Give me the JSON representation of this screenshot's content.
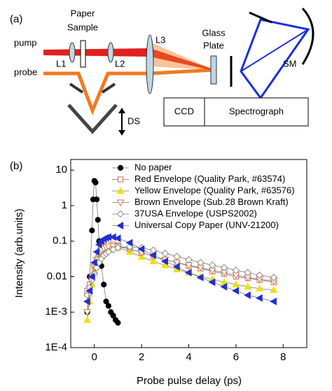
{
  "diagram": {
    "panel_label": "(a)",
    "pump": "pump",
    "probe": "probe",
    "paper_sample": [
      "Paper",
      "Sample"
    ],
    "l1": "L1",
    "l2": "L2",
    "l3": "L3",
    "glass_plate": [
      "Glass",
      "Plate"
    ],
    "sm": "SM",
    "ds": "DS",
    "ccd": "CCD",
    "spectrograph": "Spectrograph"
  },
  "chart_data": {
    "type": "line",
    "panel_label": "(b)",
    "x_label": "Probe pulse delay (ps)",
    "y_label": "Intensity (arb.units)",
    "xlim": [
      -1,
      9
    ],
    "xticks": [
      0,
      2,
      4,
      6,
      8
    ],
    "ylim": [
      0.0001,
      20
    ],
    "y_scale": "log",
    "yticks": [
      10,
      1,
      0.1,
      0.01,
      {
        "value": 0.001,
        "label": "1E-3"
      },
      {
        "value": 0.0001,
        "label": "1E-4"
      }
    ],
    "legend": "upper center",
    "series": [
      {
        "name": "No paper",
        "color": "#000000",
        "marker": "circle",
        "filled": true,
        "x": [
          -0.3,
          -0.2,
          -0.1,
          -0.05,
          0,
          0.05,
          0.1,
          0.15,
          0.2,
          0.3,
          0.4,
          0.5,
          0.6,
          0.7,
          0.8,
          0.9,
          1.0
        ],
        "values": [
          0.001,
          0.01,
          0.2,
          1.5,
          5,
          4.5,
          1.5,
          0.4,
          0.1,
          0.02,
          0.006,
          0.002,
          0.0015,
          0.001,
          0.0008,
          0.0006,
          0.0005
        ]
      },
      {
        "name": "Red Envelope (Quality Park, #63574)",
        "color": "#e06060",
        "marker": "square",
        "filled": false,
        "x": [
          -0.3,
          -0.2,
          -0.1,
          0,
          0.1,
          0.2,
          0.3,
          0.4,
          0.5,
          0.6,
          0.8,
          1,
          1.5,
          2,
          2.5,
          3,
          3.5,
          4,
          4.5,
          5,
          5.5,
          6,
          6.5,
          7,
          7.6
        ],
        "values": [
          0.004,
          0.006,
          0.01,
          0.02,
          0.03,
          0.045,
          0.06,
          0.07,
          0.075,
          0.08,
          0.08,
          0.075,
          0.06,
          0.048,
          0.038,
          0.03,
          0.025,
          0.02,
          0.017,
          0.014,
          0.012,
          0.01,
          0.009,
          0.008,
          0.007
        ]
      },
      {
        "name": "Yellow Envelope (Quality Park, #63576)",
        "color": "#f0e000",
        "marker": "triangle-up",
        "filled": true,
        "x": [
          -0.3,
          -0.2,
          -0.1,
          0,
          0.1,
          0.2,
          0.3,
          0.4,
          0.5,
          0.6,
          0.8,
          1,
          1.5,
          2,
          2.5,
          3,
          3.5,
          4,
          4.5,
          5,
          5.5,
          6,
          6.5,
          7,
          7.6
        ],
        "values": [
          0.0006,
          0.002,
          0.006,
          0.015,
          0.025,
          0.04,
          0.05,
          0.06,
          0.065,
          0.068,
          0.07,
          0.066,
          0.05,
          0.036,
          0.027,
          0.021,
          0.016,
          0.013,
          0.01,
          0.0085,
          0.007,
          0.006,
          0.0052,
          0.0046,
          0.0042
        ]
      },
      {
        "name": "Brown Envelope (Sub.28 Brown Kraft)",
        "color": "#d08040",
        "marker": "triangle-down",
        "filled": false,
        "x": [
          -0.3,
          -0.2,
          -0.1,
          0,
          0.1,
          0.2,
          0.3,
          0.4,
          0.5,
          0.6,
          0.8,
          1,
          1.5,
          2,
          2.5,
          3,
          3.5,
          4,
          4.5,
          5,
          5.5,
          6,
          6.5,
          7,
          7.6
        ],
        "values": [
          0.001,
          0.003,
          0.008,
          0.018,
          0.03,
          0.045,
          0.055,
          0.062,
          0.066,
          0.07,
          0.072,
          0.07,
          0.06,
          0.048,
          0.038,
          0.03,
          0.025,
          0.021,
          0.018,
          0.015,
          0.013,
          0.011,
          0.0095,
          0.0085,
          0.0075
        ]
      },
      {
        "name": "37USA Envelope (USPS2002)",
        "color": "#888888",
        "marker": "diamond",
        "filled": false,
        "x": [
          -0.3,
          -0.2,
          -0.1,
          0,
          0.1,
          0.2,
          0.3,
          0.4,
          0.5,
          0.6,
          0.8,
          1,
          1.5,
          2,
          2.5,
          3,
          3.5,
          4,
          4.5,
          5,
          5.5,
          6,
          6.5,
          7,
          7.6
        ],
        "values": [
          0.003,
          0.005,
          0.008,
          0.012,
          0.018,
          0.025,
          0.032,
          0.04,
          0.045,
          0.05,
          0.058,
          0.065,
          0.07,
          0.065,
          0.055,
          0.045,
          0.037,
          0.03,
          0.025,
          0.021,
          0.018,
          0.015,
          0.013,
          0.011,
          0.0095
        ]
      },
      {
        "name": "Universal Copy Paper (UNV-21200)",
        "color": "#2030d0",
        "marker": "triangle-left",
        "filled": true,
        "x": [
          -0.3,
          -0.2,
          -0.1,
          0,
          0.1,
          0.2,
          0.3,
          0.4,
          0.5,
          0.6,
          0.8,
          1,
          1.5,
          2,
          2.5,
          3,
          3.5,
          4,
          4.5,
          5,
          5.5,
          6,
          6.5,
          7,
          7.6
        ],
        "values": [
          0.002,
          0.004,
          0.01,
          0.025,
          0.05,
          0.08,
          0.1,
          0.115,
          0.125,
          0.13,
          0.13,
          0.12,
          0.09,
          0.06,
          0.04,
          0.027,
          0.019,
          0.013,
          0.0095,
          0.007,
          0.0052,
          0.004,
          0.003,
          0.0025,
          0.002
        ]
      }
    ]
  }
}
